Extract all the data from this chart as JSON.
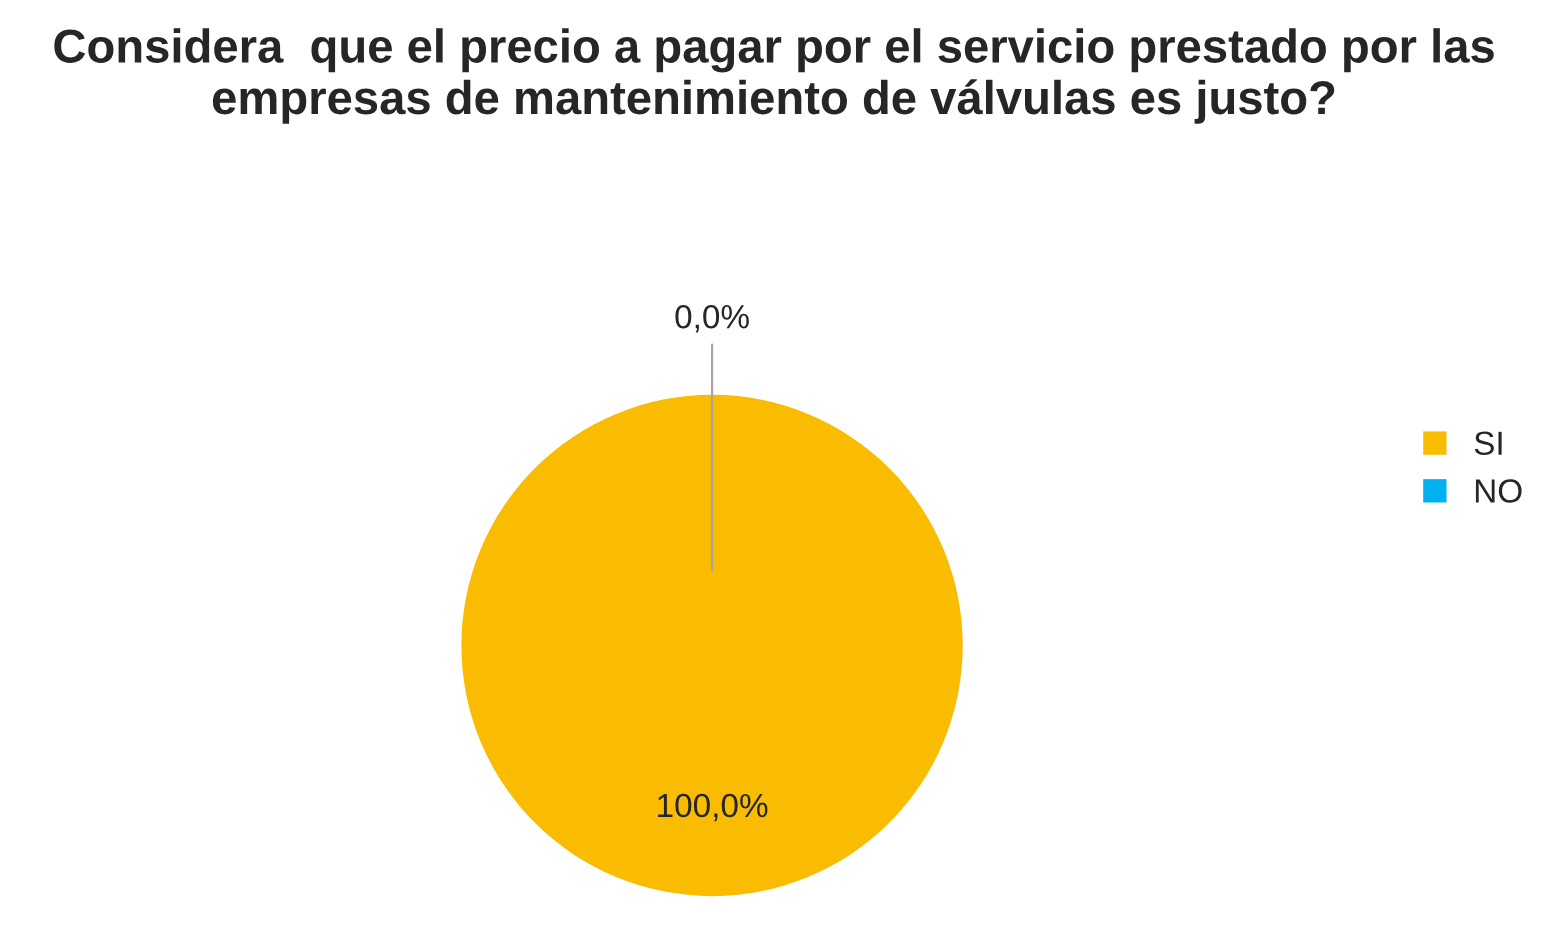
{
  "chart_data": {
    "type": "pie",
    "title": "Considera  que el precio a pagar por el servicio prestado por las empresas de mantenimiento de válvulas es justo?",
    "categories": [
      "SI",
      "NO"
    ],
    "values": [
      100,
      0
    ],
    "colors": [
      "#f9bc00",
      "#00b0f0"
    ],
    "value_labels": [
      "100,0%",
      "0,0%"
    ],
    "legend": "right"
  }
}
